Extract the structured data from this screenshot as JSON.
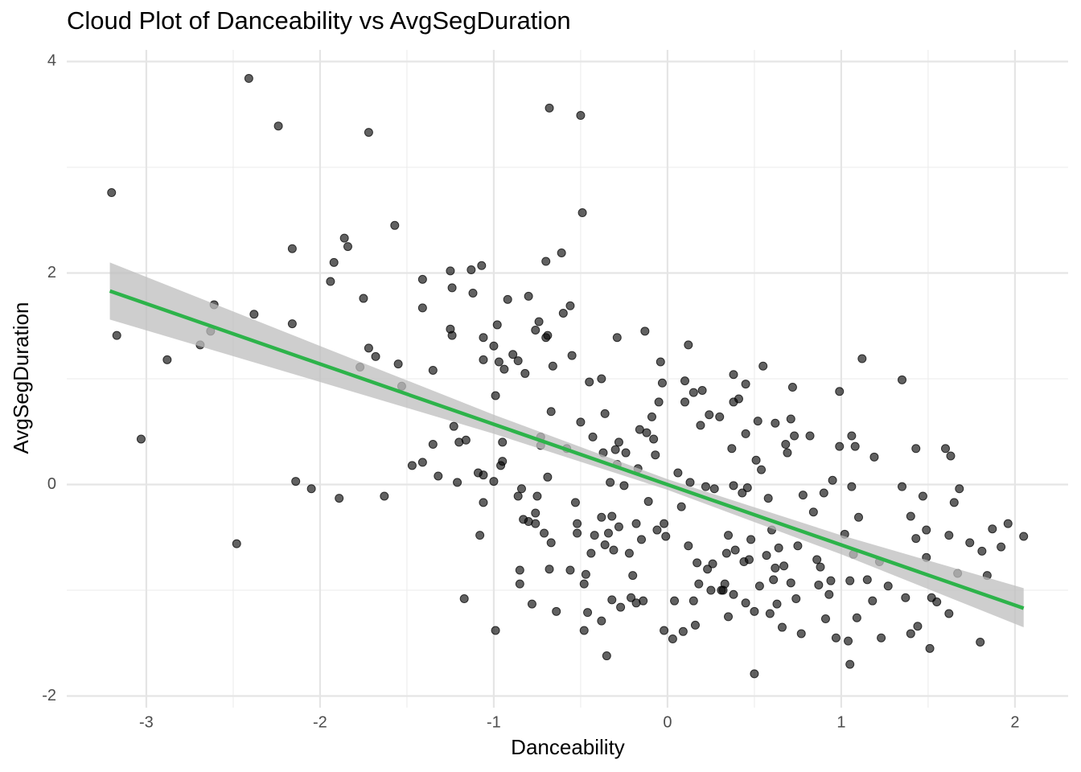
{
  "chart_data": {
    "type": "scatter",
    "title": "Cloud Plot of Danceability vs AvgSegDuration",
    "x_label": "Danceability",
    "y_label": "AvgSegDuration",
    "xlim": [
      -3.458,
      2.306
    ],
    "ylim": [
      -2.11,
      4.11
    ],
    "xticks": [
      -3,
      -2,
      -1,
      0,
      1,
      2
    ],
    "yticks": [
      -2,
      0,
      2,
      4
    ],
    "grid": true,
    "point_color": "#000000",
    "x": [
      -3.2,
      -3.17,
      -3.03,
      -2.88,
      -2.69,
      -2.63,
      -2.61,
      -2.48,
      -2.41,
      -2.38,
      -2.24,
      -2.16,
      -2.16,
      -2.14,
      -2.05,
      -1.94,
      -1.92,
      -1.89,
      -1.86,
      -1.84,
      -1.77,
      -1.75,
      -1.72,
      -1.72,
      -1.68,
      -1.63,
      -1.57,
      -1.55,
      -1.53,
      -1.47,
      -1.41,
      -1.41,
      -1.41,
      -1.35,
      -1.35,
      -1.32,
      -1.25,
      -1.25,
      -1.24,
      -1.24,
      -1.23,
      -1.21,
      -1.2,
      -1.17,
      -1.16,
      -1.13,
      -1.12,
      -1.09,
      -1.08,
      -1.07,
      -1.06,
      -1.06,
      -1.06,
      -1.06,
      -1.0,
      -1.0,
      -0.99,
      -0.99,
      -0.98,
      -0.97,
      -0.96,
      -0.95,
      -0.95,
      -0.94,
      -0.92,
      -0.89,
      -0.86,
      -0.86,
      -0.85,
      -0.85,
      -0.84,
      -0.83,
      -0.82,
      -0.8,
      -0.8,
      -0.78,
      -0.76,
      -0.76,
      -0.76,
      -0.75,
      -0.74,
      -0.73,
      -0.73,
      -0.71,
      -0.7,
      -0.7,
      -0.69,
      -0.69,
      -0.68,
      -0.68,
      -0.67,
      -0.67,
      -0.66,
      -0.64,
      -0.61,
      -0.6,
      -0.58,
      -0.56,
      -0.56,
      -0.55,
      -0.53,
      -0.52,
      -0.52,
      -0.5,
      -0.5,
      -0.49,
      -0.48,
      -0.48,
      -0.47,
      -0.46,
      -0.45,
      -0.44,
      -0.43,
      -0.42,
      -0.38,
      -0.38,
      -0.38,
      -0.37,
      -0.36,
      -0.36,
      -0.35,
      -0.34,
      -0.33,
      -0.32,
      -0.32,
      -0.31,
      -0.3,
      -0.29,
      -0.29,
      -0.28,
      -0.28,
      -0.27,
      -0.25,
      -0.24,
      -0.22,
      -0.21,
      -0.2,
      -0.18,
      -0.18,
      -0.17,
      -0.16,
      -0.15,
      -0.14,
      -0.13,
      -0.12,
      -0.11,
      -0.09,
      -0.08,
      -0.07,
      -0.06,
      -0.05,
      -0.04,
      -0.03,
      -0.02,
      -0.02,
      -0.01,
      0.03,
      0.04,
      0.06,
      0.08,
      0.09,
      0.1,
      0.1,
      0.12,
      0.12,
      0.13,
      0.15,
      0.15,
      0.16,
      0.17,
      0.18,
      0.19,
      0.2,
      0.22,
      0.23,
      0.24,
      0.25,
      0.26,
      0.27,
      0.3,
      0.31,
      0.32,
      0.33,
      0.34,
      0.35,
      0.35,
      0.37,
      0.38,
      0.38,
      0.38,
      0.38,
      0.39,
      0.41,
      0.43,
      0.44,
      0.45,
      0.45,
      0.45,
      0.46,
      0.47,
      0.48,
      0.5,
      0.5,
      0.51,
      0.52,
      0.53,
      0.54,
      0.55,
      0.57,
      0.58,
      0.59,
      0.6,
      0.61,
      0.62,
      0.62,
      0.63,
      0.64,
      0.66,
      0.67,
      0.68,
      0.69,
      0.71,
      0.71,
      0.72,
      0.73,
      0.74,
      0.75,
      0.77,
      0.78,
      0.82,
      0.84,
      0.86,
      0.87,
      0.88,
      0.9,
      0.91,
      0.93,
      0.94,
      0.95,
      0.97,
      0.99,
      0.99,
      1.02,
      1.04,
      1.05,
      1.05,
      1.06,
      1.06,
      1.07,
      1.08,
      1.09,
      1.1,
      1.12,
      1.15,
      1.18,
      1.19,
      1.22,
      1.23,
      1.27,
      1.35,
      1.35,
      1.37,
      1.4,
      1.4,
      1.43,
      1.43,
      1.44,
      1.47,
      1.49,
      1.49,
      1.51,
      1.52,
      1.55,
      1.6,
      1.62,
      1.62,
      1.63,
      1.65,
      1.67,
      1.68,
      1.74,
      1.8,
      1.81,
      1.84,
      1.87,
      1.92,
      1.96,
      2.05
    ],
    "y": [
      2.76,
      1.41,
      0.43,
      1.18,
      1.32,
      1.45,
      1.7,
      -0.56,
      3.84,
      1.61,
      3.39,
      2.23,
      1.52,
      0.03,
      -0.04,
      1.92,
      2.1,
      -0.13,
      2.33,
      2.25,
      1.11,
      1.76,
      3.33,
      1.29,
      1.21,
      -0.11,
      2.45,
      1.14,
      0.93,
      0.18,
      1.67,
      1.94,
      0.21,
      1.08,
      0.38,
      0.08,
      1.47,
      2.02,
      1.41,
      1.86,
      0.55,
      0.02,
      0.4,
      -1.08,
      0.42,
      2.03,
      1.81,
      0.11,
      -0.48,
      2.07,
      -0.17,
      1.39,
      1.18,
      0.09,
      0.03,
      1.31,
      0.84,
      -1.38,
      1.51,
      1.16,
      0.18,
      0.4,
      0.22,
      1.09,
      1.75,
      1.23,
      1.17,
      -0.11,
      -0.81,
      -0.94,
      -0.04,
      -0.33,
      1.05,
      1.78,
      -0.35,
      -1.13,
      1.46,
      -0.27,
      -0.37,
      -0.11,
      1.54,
      0.45,
      0.37,
      -0.46,
      1.39,
      2.11,
      0.07,
      1.41,
      -0.8,
      3.56,
      0.69,
      -0.55,
      1.12,
      -1.2,
      2.19,
      1.62,
      0.34,
      1.69,
      -0.81,
      1.22,
      -0.17,
      -0.37,
      -0.46,
      0.59,
      3.49,
      2.57,
      -1.38,
      -0.94,
      -0.85,
      -1.21,
      0.97,
      -0.65,
      0.45,
      -0.48,
      -1.29,
      1.0,
      -0.31,
      0.3,
      -0.57,
      0.67,
      -1.62,
      -0.46,
      0.02,
      -0.3,
      -1.09,
      -0.62,
      0.33,
      1.39,
      0.19,
      0.4,
      -0.4,
      -1.16,
      -0.01,
      0.3,
      -0.65,
      -1.07,
      -0.86,
      -0.37,
      -1.12,
      0.15,
      0.52,
      -0.52,
      -1.1,
      1.45,
      0.49,
      -0.16,
      0.64,
      0.43,
      0.28,
      -0.43,
      0.78,
      1.16,
      0.96,
      -0.37,
      -1.38,
      -0.49,
      -1.46,
      -1.1,
      0.11,
      -0.21,
      -1.39,
      0.98,
      0.78,
      -0.58,
      1.32,
      0.02,
      0.87,
      -1.1,
      -1.33,
      -0.74,
      -0.94,
      0.56,
      0.89,
      -0.02,
      -0.8,
      0.66,
      -1.0,
      -0.75,
      -0.04,
      0.64,
      -1.0,
      -1.0,
      -0.94,
      -0.65,
      -0.48,
      -1.25,
      0.34,
      -1.04,
      1.04,
      0.78,
      -0.01,
      -0.62,
      0.81,
      -0.08,
      -0.73,
      0.48,
      -1.12,
      0.95,
      -0.03,
      -0.71,
      -0.52,
      -1.2,
      -1.79,
      0.23,
      0.6,
      -0.96,
      0.14,
      1.12,
      -0.67,
      -0.13,
      -1.22,
      -0.43,
      -0.9,
      0.58,
      -0.79,
      -1.13,
      -0.6,
      -1.35,
      -0.77,
      0.38,
      0.3,
      0.62,
      -0.93,
      0.92,
      0.46,
      -1.08,
      -0.58,
      -1.41,
      -0.1,
      0.46,
      -0.26,
      -0.71,
      -0.95,
      -0.78,
      -0.08,
      -1.27,
      -1.04,
      -0.91,
      0.04,
      -1.45,
      0.88,
      0.36,
      -0.47,
      -1.48,
      -1.7,
      -0.91,
      -0.02,
      0.46,
      -0.66,
      0.36,
      -1.26,
      -0.31,
      1.19,
      -0.9,
      -1.1,
      0.26,
      -0.73,
      -1.45,
      -0.96,
      0.99,
      -0.02,
      -1.07,
      -0.3,
      -1.41,
      0.34,
      -0.51,
      -1.34,
      -0.11,
      -0.43,
      -0.69,
      -1.55,
      -1.07,
      -1.11,
      0.34,
      -0.48,
      -1.22,
      0.27,
      -0.17,
      -0.84,
      -0.04,
      -0.55,
      -1.49,
      -0.63,
      -0.86,
      -0.42,
      -0.59,
      -0.37,
      -0.49
    ],
    "fit": {
      "color": "#2db34a",
      "x": [
        -3.21,
        2.05
      ],
      "y": [
        1.83,
        -1.17
      ]
    },
    "band": {
      "color": "#bdbdbd",
      "x": [
        -3.21,
        -2,
        -1,
        0,
        1,
        2.05
      ],
      "lower": [
        1.56,
        0.97,
        0.48,
        -0.05,
        -0.66,
        -1.35
      ],
      "upper": [
        2.1,
        1.31,
        0.66,
        0.05,
        -0.48,
        -0.98
      ]
    }
  }
}
